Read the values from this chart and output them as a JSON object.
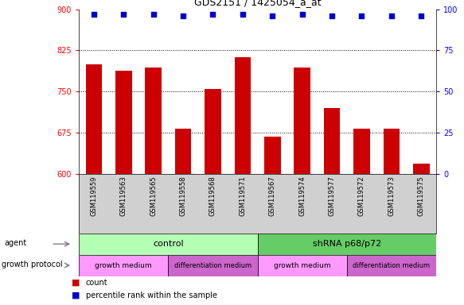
{
  "title": "GDS2151 / 1425054_a_at",
  "samples": [
    "GSM119559",
    "GSM119563",
    "GSM119565",
    "GSM119558",
    "GSM119568",
    "GSM119571",
    "GSM119567",
    "GSM119574",
    "GSM119577",
    "GSM119572",
    "GSM119573",
    "GSM119575"
  ],
  "bar_values": [
    800,
    788,
    793,
    683,
    755,
    813,
    668,
    793,
    720,
    683,
    682,
    618
  ],
  "percentile_values": [
    97,
    97,
    97,
    96,
    97,
    97,
    96,
    97,
    96,
    96,
    96,
    96
  ],
  "ymin": 600,
  "ymax": 900,
  "yticks_left": [
    600,
    675,
    750,
    825,
    900
  ],
  "yticks_right": [
    0,
    25,
    50,
    75,
    100
  ],
  "bar_color": "#cc0000",
  "dot_color": "#0000cc",
  "agent_control_color": "#b3ffb3",
  "agent_shrna_color": "#66cc66",
  "growth_medium_color": "#ff99ff",
  "diff_medium_color": "#cc66cc",
  "xtick_bg_color": "#d0d0d0",
  "agent_control_label": "control",
  "agent_shrna_label": "shRNA p68/p72",
  "growth_medium_label": "growth medium",
  "diff_medium_label": "differentiation medium",
  "agent_row_label": "agent",
  "growth_protocol_label": "growth protocol",
  "legend_count_label": "count",
  "legend_percentile_label": "percentile rank within the sample"
}
